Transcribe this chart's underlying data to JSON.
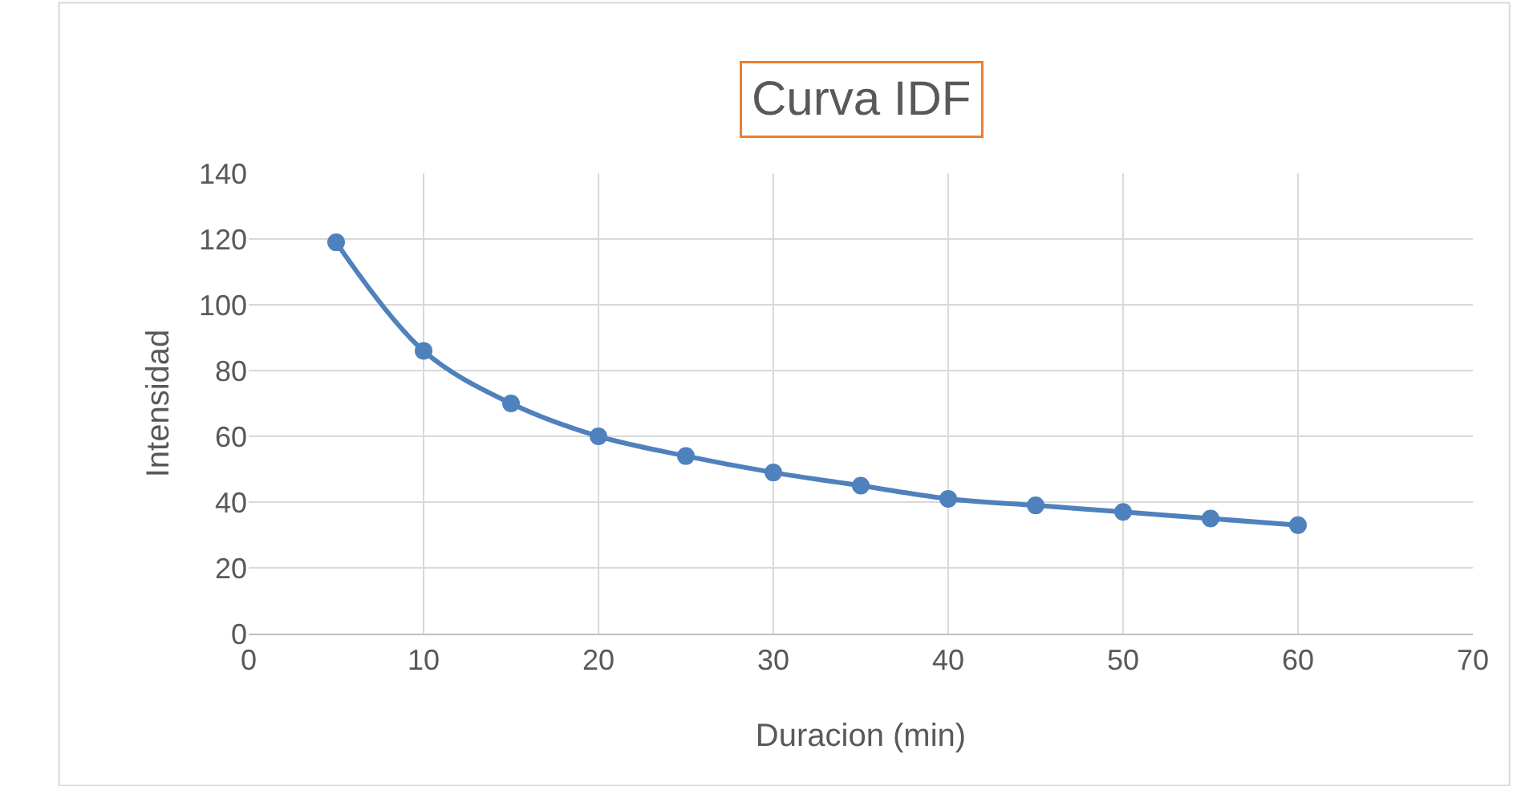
{
  "chart_data": {
    "type": "line",
    "title": "Curva IDF",
    "xlabel": "Duracion (min)",
    "ylabel": "Intensidad",
    "x": [
      5,
      10,
      15,
      20,
      25,
      30,
      35,
      40,
      45,
      50,
      55,
      60
    ],
    "series": [
      {
        "color": "#4f81bd",
        "values": [
          119,
          86,
          70,
          60,
          54,
          49,
          45,
          41,
          39,
          37,
          35,
          33
        ]
      }
    ],
    "xlim": [
      0,
      70
    ],
    "xticks": [
      0,
      10,
      20,
      30,
      40,
      50,
      60,
      70
    ],
    "ylim": [
      0,
      140
    ],
    "yticks": [
      0,
      20,
      40,
      60,
      80,
      100,
      120,
      140
    ],
    "grid": true,
    "marker": "circle",
    "line_style": "solid"
  }
}
